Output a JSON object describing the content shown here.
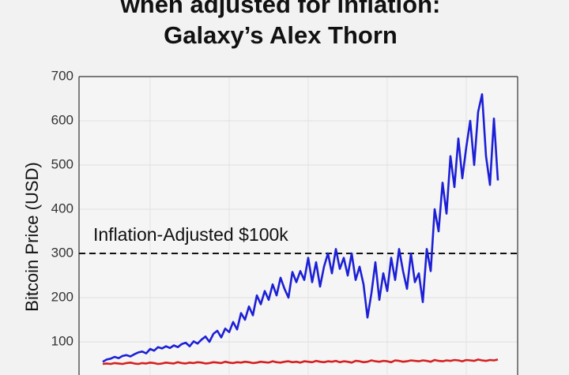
{
  "chart_data": {
    "type": "line",
    "title_lines": [
      "when adjusted for inflation:",
      "Galaxy’s Alex Thorn"
    ],
    "ylabel": "Bitcoin Price (USD)",
    "annotation": {
      "text": "Inflation-Adjusted $100k",
      "y": 300
    },
    "categories": [
      null,
      null,
      null,
      null,
      null,
      null,
      null,
      null,
      null,
      null,
      null,
      null,
      null,
      null,
      null,
      null,
      null,
      null,
      null,
      null,
      null,
      null,
      null,
      null,
      null,
      null,
      null,
      null,
      null,
      null,
      null,
      null,
      null,
      null,
      null,
      null,
      null,
      null,
      null,
      null,
      null,
      null,
      null,
      null,
      null,
      null,
      null,
      null,
      null,
      null,
      null,
      null,
      null,
      null,
      null,
      null,
      null,
      null,
      null,
      null,
      null,
      null,
      null,
      null,
      null,
      null,
      null,
      null,
      null,
      null,
      null,
      null,
      null,
      null,
      null,
      null,
      null,
      null,
      null,
      null,
      null,
      null,
      null,
      null,
      null,
      null,
      null,
      null,
      null,
      null,
      null,
      null,
      null,
      null,
      null,
      null,
      null,
      null,
      null,
      null,
      null
    ],
    "series": [
      {
        "color": "#1c1fd6",
        "values": [
          55,
          60,
          62,
          66,
          63,
          68,
          70,
          67,
          72,
          76,
          78,
          74,
          84,
          80,
          88,
          85,
          90,
          86,
          92,
          88,
          95,
          98,
          90,
          101,
          96,
          105,
          112,
          100,
          118,
          125,
          110,
          130,
          122,
          145,
          128,
          165,
          150,
          180,
          160,
          205,
          185,
          215,
          195,
          230,
          205,
          245,
          220,
          200,
          258,
          235,
          260,
          240,
          290,
          235,
          280,
          225,
          270,
          300,
          255,
          310,
          265,
          290,
          250,
          300,
          240,
          270,
          230,
          155,
          210,
          280,
          195,
          255,
          215,
          290,
          240,
          310,
          260,
          220,
          300,
          235,
          255,
          190,
          310,
          260,
          400,
          350,
          460,
          390,
          520,
          450,
          560,
          470,
          540,
          600,
          500,
          620,
          660,
          520,
          455,
          605,
          465
        ]
      },
      {
        "color": "#d62020",
        "values": [
          50,
          51,
          50,
          52,
          51,
          50,
          52,
          53,
          51,
          50,
          52,
          51,
          53,
          52,
          50,
          51,
          53,
          52,
          51,
          54,
          52,
          51,
          53,
          52,
          54,
          53,
          51,
          52,
          54,
          53,
          52,
          55,
          53,
          52,
          54,
          53,
          55,
          54,
          52,
          53,
          55,
          54,
          53,
          56,
          54,
          53,
          55,
          56,
          54,
          55,
          53,
          56,
          55,
          54,
          57,
          55,
          54,
          56,
          55,
          57,
          54,
          56,
          55,
          53,
          57,
          56,
          54,
          55,
          58,
          56,
          55,
          57,
          56,
          54,
          58,
          57,
          55,
          56,
          58,
          57,
          56,
          58,
          57,
          55,
          59,
          57,
          56,
          58,
          57,
          59,
          58,
          56,
          59,
          58,
          57,
          60,
          58,
          57,
          59,
          58,
          60
        ]
      }
    ],
    "ylim": [
      25,
      700
    ],
    "yticks": [
      100,
      200,
      300,
      400,
      500,
      600,
      700
    ],
    "grid": true
  }
}
